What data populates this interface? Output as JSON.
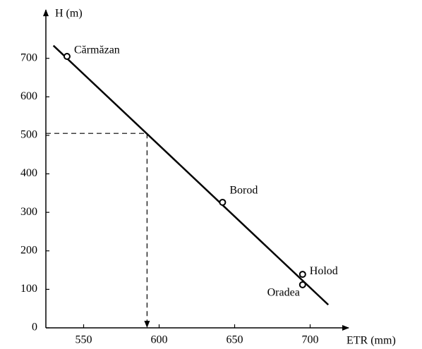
{
  "chart_data": {
    "type": "scatter",
    "y_label": "H (m)",
    "x_label": "ETR (mm)",
    "xlim": [
      525,
      725
    ],
    "ylim": [
      0,
      824
    ],
    "xticks": [
      550,
      600,
      650,
      700
    ],
    "yticks": [
      0,
      100,
      200,
      300,
      400,
      500,
      600,
      700
    ],
    "color": "#000000",
    "points": [
      {
        "label": "Cărmăzan",
        "x": 539,
        "y": 705
      },
      {
        "label": "Borod",
        "x": 642,
        "y": 326
      },
      {
        "label": "Holod",
        "x": 695,
        "y": 139
      },
      {
        "label": "Oradea",
        "x": 695,
        "y": 112
      }
    ],
    "fit_line": {
      "x": [
        530,
        712
      ],
      "y": [
        733,
        60
      ]
    },
    "reference": {
      "x": 592,
      "y": 505
    }
  }
}
